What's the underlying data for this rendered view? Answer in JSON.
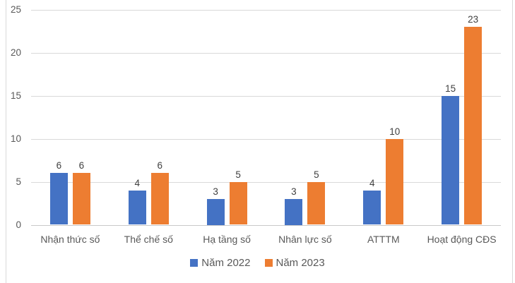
{
  "chart_data": {
    "type": "bar",
    "title": "",
    "xlabel": "",
    "ylabel": "",
    "categories": [
      "Nhận thức số",
      "Thể chế số",
      "Hạ tầng số",
      "Nhân lực số",
      "ATTTM",
      "Hoạt động CĐS"
    ],
    "series": [
      {
        "name": "Năm 2022",
        "color": "#4472C4",
        "values": [
          6,
          4,
          3,
          3,
          4,
          15
        ]
      },
      {
        "name": "Năm 2023",
        "color": "#ED7D31",
        "values": [
          6,
          6,
          5,
          5,
          10,
          23
        ]
      }
    ],
    "ylim": [
      0,
      25
    ],
    "yticks": [
      0,
      5,
      10,
      15,
      20,
      25
    ],
    "grid": true,
    "legend_position": "bottom",
    "data_labels": true
  },
  "colors": {
    "grid": "#D9D9D9",
    "axis_line": "#C9C9C9",
    "border": "#D9D9D9",
    "tick_label": "#595959",
    "category_label": "#595959",
    "value_label": "#404040",
    "legend_label": "#595959",
    "background": "#FFFFFF"
  }
}
